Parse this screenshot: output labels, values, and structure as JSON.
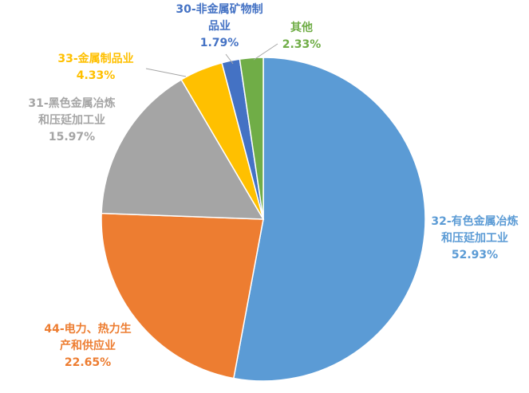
{
  "chart_data": {
    "type": "pie",
    "categories": [
      "32-有色金属冶炼和压延加工业",
      "44-电力、热力生产和供应业",
      "31-黑色金属冶炼和压延加工业",
      "33-金属制品业",
      "30-非金属矿物制品业",
      "其他"
    ],
    "values": [
      52.93,
      22.65,
      15.97,
      4.33,
      1.79,
      2.33
    ],
    "value_labels": [
      "52.93%",
      "22.65%",
      "15.97%",
      "4.33%",
      "1.79%",
      "2.33%"
    ],
    "colors": [
      "#5b9bd5",
      "#ed7d31",
      "#a5a5a5",
      "#ffc000",
      "#4472c4",
      "#70ad47"
    ]
  }
}
